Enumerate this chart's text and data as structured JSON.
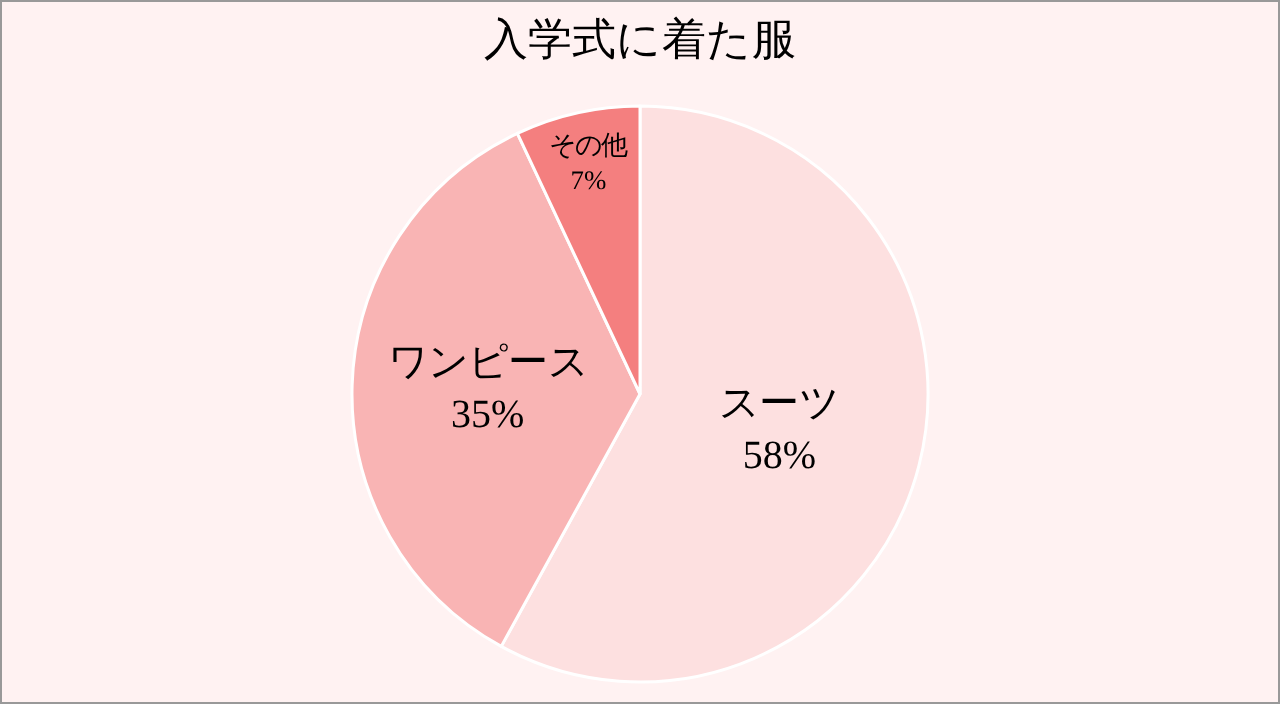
{
  "chart_data": {
    "type": "pie",
    "title": "入学式に着た服",
    "categories": [
      "スーツ",
      "ワンピース",
      "その他"
    ],
    "values": [
      58,
      35,
      7
    ],
    "value_labels": [
      "58%",
      "35%",
      "7%"
    ],
    "colors": [
      "#fde0e0",
      "#f9b4b4",
      "#f47f7f"
    ],
    "legend": false
  }
}
